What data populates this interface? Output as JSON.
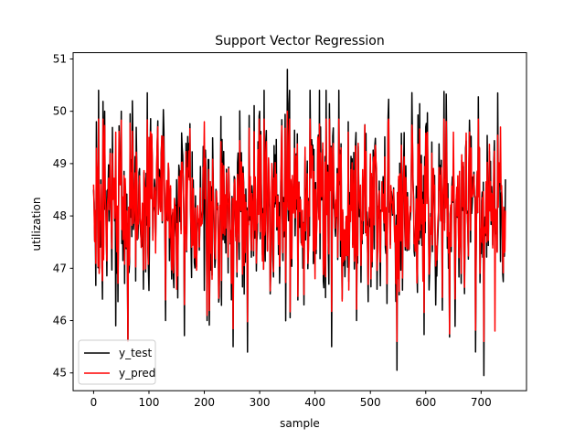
{
  "chart_data": {
    "type": "line",
    "title": "Support Vector Regression",
    "xlabel": "sample",
    "ylabel": "utilization",
    "xlim": [
      -37,
      782
    ],
    "ylim": [
      44.66,
      51.12
    ],
    "xticks": [
      0,
      100,
      200,
      300,
      400,
      500,
      600,
      700
    ],
    "yticks": [
      45,
      46,
      47,
      48,
      49,
      50,
      51
    ],
    "grid": false,
    "legend_position": "lower-left",
    "n_points": 745,
    "series": [
      {
        "name": "y_test",
        "color": "#000000",
        "anchor_values": [
          {
            "x": 0,
            "y": 48.5
          },
          {
            "x": 5,
            "y": 49.8
          },
          {
            "x": 10,
            "y": 47.0
          },
          {
            "x": 20,
            "y": 50.0
          },
          {
            "x": 40,
            "y": 45.9
          },
          {
            "x": 50,
            "y": 50.0
          },
          {
            "x": 62,
            "y": 45.6
          },
          {
            "x": 70,
            "y": 50.2
          },
          {
            "x": 90,
            "y": 46.6
          },
          {
            "x": 130,
            "y": 46.0
          },
          {
            "x": 160,
            "y": 49.3
          },
          {
            "x": 205,
            "y": 46.0
          },
          {
            "x": 230,
            "y": 49.9
          },
          {
            "x": 252,
            "y": 45.5
          },
          {
            "x": 300,
            "y": 50.0
          },
          {
            "x": 350,
            "y": 50.8
          },
          {
            "x": 380,
            "y": 46.3
          },
          {
            "x": 410,
            "y": 49.7
          },
          {
            "x": 430,
            "y": 45.5
          },
          {
            "x": 460,
            "y": 49.8
          },
          {
            "x": 475,
            "y": 46.0
          },
          {
            "x": 548,
            "y": 45.05
          },
          {
            "x": 600,
            "y": 49.7
          },
          {
            "x": 630,
            "y": 46.2
          },
          {
            "x": 690,
            "y": 45.4
          },
          {
            "x": 705,
            "y": 44.95
          },
          {
            "x": 730,
            "y": 50.35
          },
          {
            "x": 745,
            "y": 48.7
          }
        ]
      },
      {
        "name": "y_pred",
        "color": "#ff0000",
        "anchor_values": [
          {
            "x": 0,
            "y": 48.6
          },
          {
            "x": 10,
            "y": 46.9
          },
          {
            "x": 40,
            "y": 49.6
          },
          {
            "x": 62,
            "y": 45.6
          },
          {
            "x": 100,
            "y": 49.5
          },
          {
            "x": 150,
            "y": 46.6
          },
          {
            "x": 200,
            "y": 49.8
          },
          {
            "x": 205,
            "y": 46.1
          },
          {
            "x": 300,
            "y": 49.2
          },
          {
            "x": 350,
            "y": 50.0
          },
          {
            "x": 400,
            "y": 46.8
          },
          {
            "x": 460,
            "y": 49.6
          },
          {
            "x": 550,
            "y": 46.8
          },
          {
            "x": 650,
            "y": 49.6
          },
          {
            "x": 725,
            "y": 45.8
          },
          {
            "x": 735,
            "y": 49.7
          },
          {
            "x": 745,
            "y": 48.1
          }
        ]
      }
    ]
  }
}
